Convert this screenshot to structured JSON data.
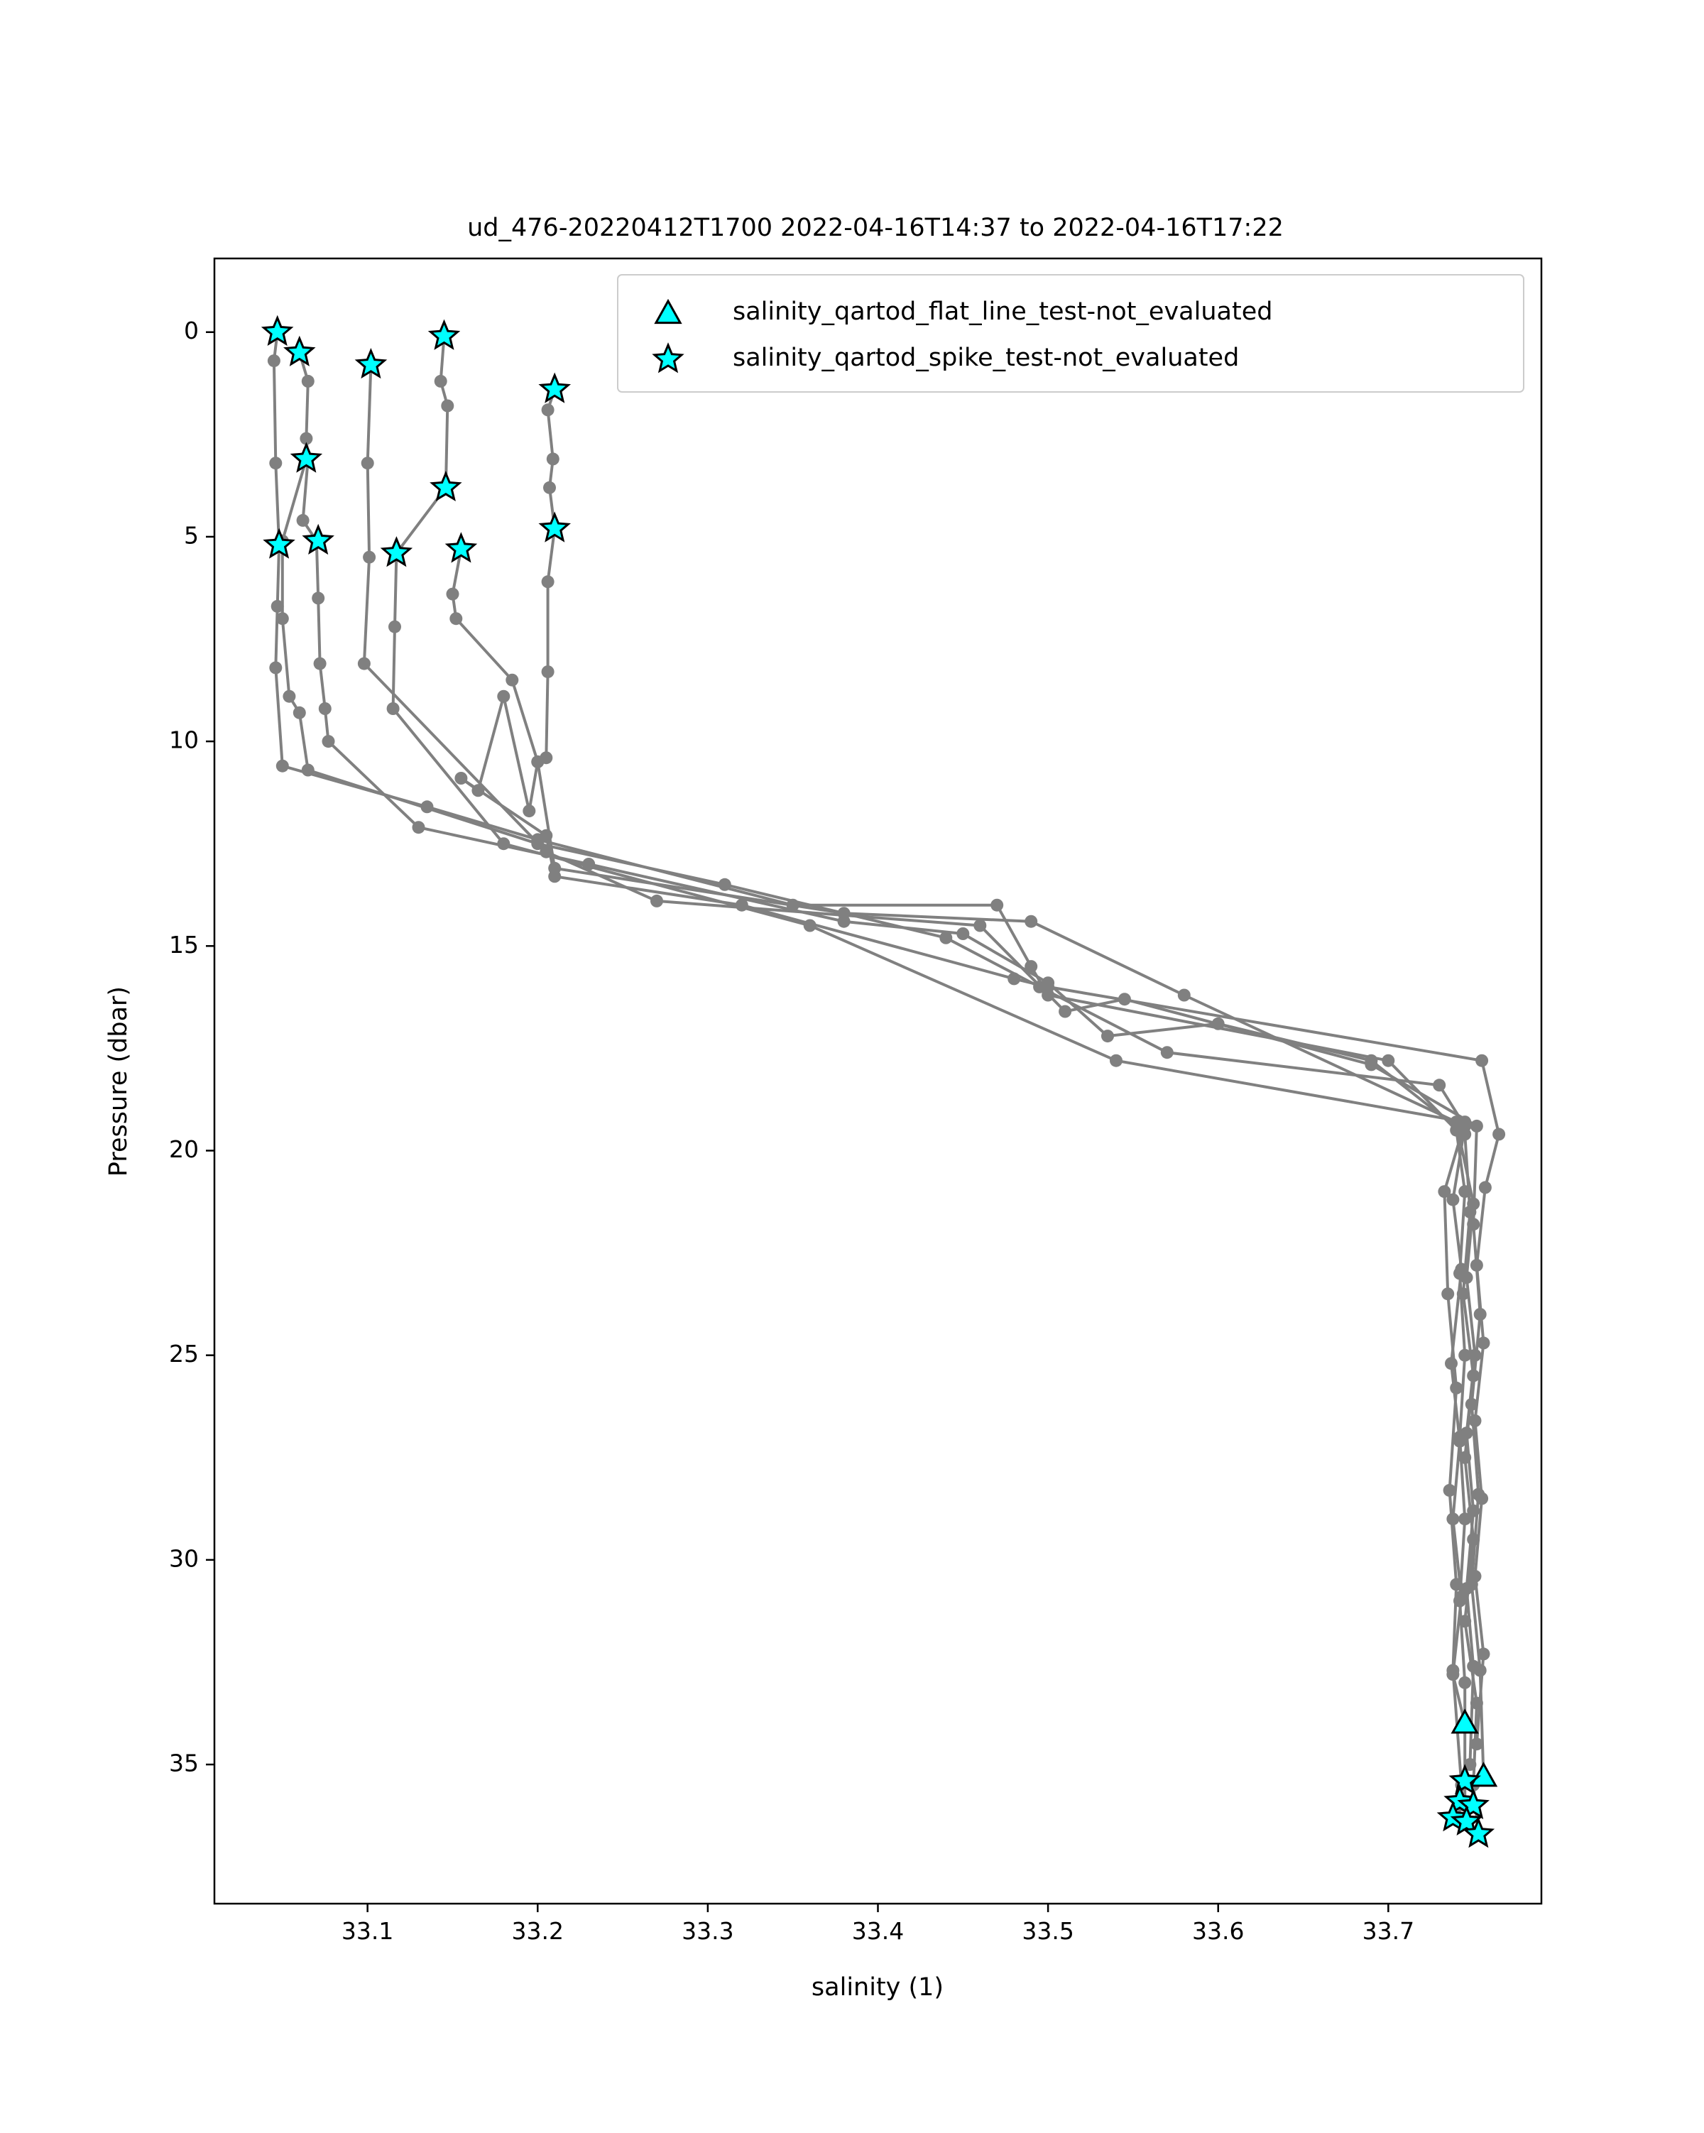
{
  "chart_data": {
    "type": "line",
    "title": "ud_476-20220412T1700 2022-04-16T14:37 to 2022-04-16T17:22",
    "xlabel": "salinity (1)",
    "ylabel": "Pressure (dbar)",
    "xlim": [
      33.01,
      33.79
    ],
    "ylim": [
      38.4,
      -1.8
    ],
    "y_inverted": true,
    "xticks": [
      33.1,
      33.2,
      33.3,
      33.4,
      33.5,
      33.6,
      33.7
    ],
    "xtick_labels": [
      "33.1",
      "33.2",
      "33.3",
      "33.4",
      "33.5",
      "33.6",
      "33.7"
    ],
    "yticks": [
      0,
      5,
      10,
      15,
      20,
      25,
      30,
      35
    ],
    "ytick_labels": [
      "0",
      "5",
      "10",
      "15",
      "20",
      "25",
      "30",
      "35"
    ],
    "grid": false,
    "legend_position": "upper right",
    "colors": {
      "profile_line": "#808080",
      "marker_fill": "#00ffff",
      "marker_edge": "#000000"
    },
    "profiles": [
      {
        "points": [
          [
            33.047,
            0.0
          ],
          [
            33.045,
            0.7
          ],
          [
            33.046,
            3.2
          ],
          [
            33.048,
            5.2
          ],
          [
            33.047,
            6.7
          ],
          [
            33.046,
            8.2
          ],
          [
            33.05,
            10.6
          ],
          [
            33.135,
            11.6
          ],
          [
            33.2,
            12.4
          ],
          [
            33.35,
            14.0
          ],
          [
            33.47,
            14.0
          ],
          [
            33.49,
            15.5
          ],
          [
            33.5,
            16.2
          ],
          [
            33.7,
            17.8
          ],
          [
            33.74,
            19.5
          ],
          [
            33.745,
            21.0
          ],
          [
            33.742,
            23.0
          ],
          [
            33.745,
            25.0
          ],
          [
            33.742,
            27.0
          ],
          [
            33.745,
            29.0
          ],
          [
            33.742,
            31.0
          ],
          [
            33.745,
            33.0
          ],
          [
            33.745,
            35.4
          ],
          [
            33.745,
            36.0
          ],
          [
            33.738,
            36.3
          ]
        ]
      },
      {
        "points": [
          [
            33.06,
            0.5
          ],
          [
            33.065,
            1.2
          ],
          [
            33.064,
            2.6
          ],
          [
            33.065,
            3.1
          ],
          [
            33.062,
            4.6
          ],
          [
            33.07,
            5.1
          ],
          [
            33.071,
            6.5
          ],
          [
            33.072,
            8.1
          ],
          [
            33.075,
            9.2
          ],
          [
            33.077,
            10.0
          ],
          [
            33.13,
            12.1
          ],
          [
            33.23,
            13.0
          ],
          [
            33.38,
            14.4
          ],
          [
            33.45,
            14.7
          ],
          [
            33.5,
            15.9
          ],
          [
            33.535,
            17.2
          ],
          [
            33.6,
            16.9
          ],
          [
            33.69,
            17.8
          ],
          [
            33.745,
            19.6
          ],
          [
            33.748,
            21.5
          ],
          [
            33.744,
            23.5
          ],
          [
            33.75,
            25.5
          ],
          [
            33.745,
            27.5
          ],
          [
            33.75,
            29.5
          ],
          [
            33.745,
            31.5
          ],
          [
            33.752,
            33.5
          ],
          [
            33.75,
            35.5
          ],
          [
            33.753,
            36.7
          ]
        ]
      },
      {
        "points": [
          [
            33.064,
            3.1
          ],
          [
            33.05,
            5.1
          ],
          [
            33.05,
            7.0
          ],
          [
            33.054,
            8.9
          ],
          [
            33.06,
            9.3
          ],
          [
            33.065,
            10.7
          ],
          [
            33.2,
            12.5
          ],
          [
            33.31,
            13.5
          ],
          [
            33.44,
            14.8
          ],
          [
            33.495,
            16.0
          ],
          [
            33.57,
            17.6
          ],
          [
            33.73,
            18.4
          ],
          [
            33.745,
            19.4
          ],
          [
            33.738,
            21.2
          ],
          [
            33.743,
            22.9
          ],
          [
            33.737,
            25.2
          ],
          [
            33.742,
            27.1
          ],
          [
            33.738,
            29.0
          ],
          [
            33.743,
            30.9
          ],
          [
            33.738,
            32.8
          ],
          [
            33.745,
            34.0
          ]
        ]
      },
      {
        "points": [
          [
            33.102,
            0.8
          ],
          [
            33.1,
            3.2
          ],
          [
            33.101,
            5.5
          ],
          [
            33.098,
            8.1
          ],
          [
            33.205,
            12.7
          ],
          [
            33.27,
            13.9
          ],
          [
            33.46,
            14.5
          ],
          [
            33.51,
            16.6
          ],
          [
            33.545,
            16.3
          ],
          [
            33.69,
            17.9
          ],
          [
            33.752,
            19.4
          ],
          [
            33.75,
            21.8
          ],
          [
            33.754,
            24.0
          ],
          [
            33.749,
            26.2
          ],
          [
            33.753,
            28.4
          ],
          [
            33.749,
            30.6
          ],
          [
            33.754,
            32.7
          ],
          [
            33.756,
            35.3
          ]
        ]
      },
      {
        "points": [
          [
            33.145,
            0.1
          ],
          [
            33.143,
            1.2
          ],
          [
            33.147,
            1.8
          ],
          [
            33.146,
            3.8
          ],
          [
            33.117,
            5.4
          ],
          [
            33.116,
            7.2
          ],
          [
            33.115,
            9.2
          ],
          [
            33.18,
            12.5
          ],
          [
            33.36,
            14.5
          ],
          [
            33.54,
            17.8
          ],
          [
            33.745,
            19.3
          ],
          [
            33.733,
            21.0
          ],
          [
            33.735,
            23.5
          ],
          [
            33.74,
            25.8
          ],
          [
            33.736,
            28.3
          ],
          [
            33.74,
            30.6
          ],
          [
            33.738,
            32.7
          ],
          [
            33.743,
            35.5
          ]
        ]
      },
      {
        "points": [
          [
            33.155,
            5.3
          ],
          [
            33.15,
            6.4
          ],
          [
            33.152,
            7.0
          ],
          [
            33.185,
            8.5
          ],
          [
            33.2,
            10.5
          ],
          [
            33.21,
            13.1
          ],
          [
            33.38,
            14.2
          ],
          [
            33.49,
            14.4
          ],
          [
            33.58,
            16.2
          ],
          [
            33.74,
            19.3
          ],
          [
            33.75,
            21.3
          ],
          [
            33.746,
            23.1
          ],
          [
            33.751,
            25.0
          ],
          [
            33.746,
            26.9
          ],
          [
            33.75,
            28.8
          ],
          [
            33.746,
            30.7
          ],
          [
            33.75,
            32.6
          ],
          [
            33.748,
            35.0
          ]
        ]
      },
      {
        "points": [
          [
            33.21,
            1.4
          ],
          [
            33.206,
            1.9
          ],
          [
            33.209,
            3.1
          ],
          [
            33.207,
            3.8
          ],
          [
            33.21,
            4.8
          ],
          [
            33.206,
            6.1
          ],
          [
            33.206,
            8.3
          ],
          [
            33.205,
            10.4
          ],
          [
            33.2,
            10.5
          ],
          [
            33.195,
            11.7
          ],
          [
            33.18,
            8.9
          ],
          [
            33.165,
            11.2
          ],
          [
            33.155,
            10.9
          ],
          [
            33.205,
            12.3
          ],
          [
            33.21,
            13.3
          ],
          [
            33.32,
            14.0
          ],
          [
            33.48,
            15.8
          ],
          [
            33.5,
            16.0
          ],
          [
            33.755,
            17.8
          ],
          [
            33.765,
            19.6
          ],
          [
            33.757,
            20.9
          ],
          [
            33.752,
            22.8
          ],
          [
            33.756,
            24.7
          ],
          [
            33.751,
            26.6
          ],
          [
            33.755,
            28.5
          ],
          [
            33.751,
            30.4
          ],
          [
            33.756,
            32.3
          ],
          [
            33.752,
            34.5
          ]
        ]
      }
    ],
    "series": [
      {
        "name": "salinity_qartod_flat_line_test-not_evaluated",
        "marker": "triangle",
        "points": [
          [
            33.745,
            34.0
          ],
          [
            33.756,
            35.3
          ]
        ]
      },
      {
        "name": "salinity_qartod_spike_test-not_evaluated",
        "marker": "star",
        "points": [
          [
            33.047,
            0.0
          ],
          [
            33.06,
            0.5
          ],
          [
            33.102,
            0.8
          ],
          [
            33.145,
            0.1
          ],
          [
            33.21,
            1.4
          ],
          [
            33.064,
            3.1
          ],
          [
            33.146,
            3.8
          ],
          [
            33.048,
            5.2
          ],
          [
            33.071,
            5.1
          ],
          [
            33.117,
            5.4
          ],
          [
            33.155,
            5.3
          ],
          [
            33.21,
            4.8
          ],
          [
            33.745,
            35.4
          ],
          [
            33.742,
            35.9
          ],
          [
            33.75,
            36.0
          ],
          [
            33.738,
            36.3
          ],
          [
            33.746,
            36.4
          ],
          [
            33.753,
            36.7
          ]
        ]
      }
    ]
  }
}
